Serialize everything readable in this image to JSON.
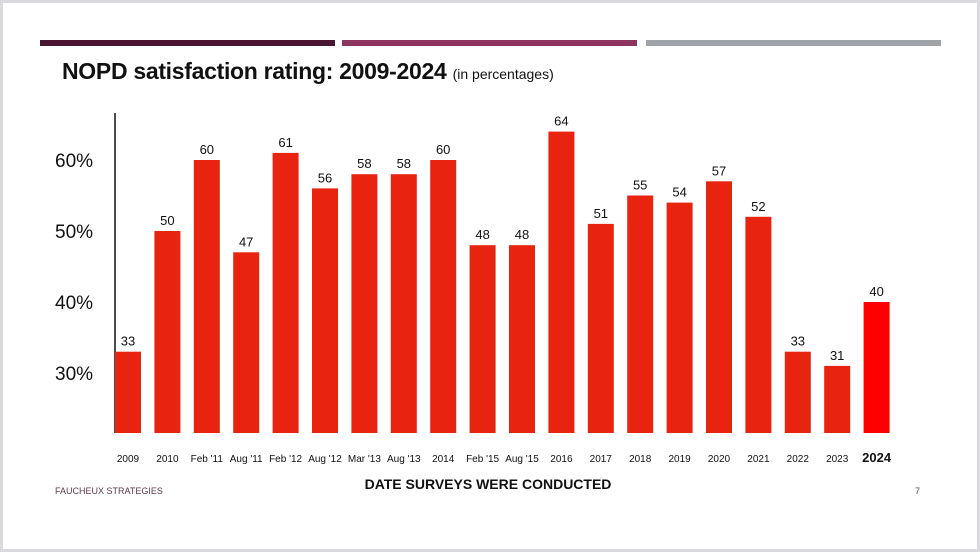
{
  "colors": {
    "stripe1": "#4a1530",
    "stripe2": "#8e3460",
    "stripe3": "#a0a3a8",
    "bar": "#e8230f",
    "bar_highlight": "#ff0000"
  },
  "chart_data": {
    "type": "bar",
    "title": "NOPD satisfaction rating: 2009-2024",
    "subtitle": "(in percentages)",
    "xlabel": "DATE SURVEYS WERE CONDUCTED",
    "ylabel": "",
    "categories": [
      "2009",
      "2010",
      "Feb '11",
      "Aug '11",
      "Feb '12",
      "Aug '12",
      "Mar '13",
      "Aug '13",
      "2014",
      "Feb '15",
      "Aug '15",
      "2016",
      "2017",
      "2018",
      "2019",
      "2020",
      "2021",
      "2022",
      "2023",
      "2024"
    ],
    "values": [
      33,
      50,
      60,
      47,
      61,
      56,
      58,
      58,
      60,
      48,
      48,
      64,
      51,
      55,
      54,
      57,
      52,
      33,
      31,
      40
    ],
    "highlight": "2024",
    "yticks": [
      {
        "value": 30,
        "label": "30%"
      },
      {
        "value": 40,
        "label": "40%"
      },
      {
        "value": 50,
        "label": "50%"
      },
      {
        "value": 60,
        "label": "60%"
      }
    ],
    "grid": false
  },
  "footer": {
    "brand": "FAUCHEUX STRATEGIES",
    "page": "7"
  }
}
